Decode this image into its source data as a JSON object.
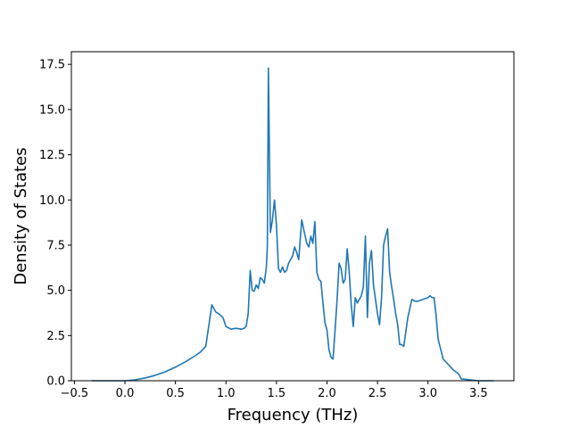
{
  "chart_data": {
    "type": "line",
    "title": "",
    "xlabel": "Frequency (THz)",
    "ylabel": "Density of States",
    "xlim": [
      -0.53,
      3.85
    ],
    "ylim": [
      0.0,
      18.2
    ],
    "xticks": [
      -0.5,
      0.0,
      0.5,
      1.0,
      1.5,
      2.0,
      2.5,
      3.0,
      3.5
    ],
    "xtick_labels": [
      "−0.5",
      "0.0",
      "0.5",
      "1.0",
      "1.5",
      "2.0",
      "2.5",
      "3.0",
      "3.5"
    ],
    "yticks": [
      0.0,
      2.5,
      5.0,
      7.5,
      10.0,
      12.5,
      15.0,
      17.5
    ],
    "ytick_labels": [
      "0.0",
      "2.5",
      "5.0",
      "7.5",
      "10.0",
      "12.5",
      "15.0",
      "17.5"
    ],
    "grid": false,
    "line_color": "#1f77b4",
    "series": [
      {
        "x": [
          -0.33,
          -0.2,
          0.0,
          0.1,
          0.2,
          0.3,
          0.4,
          0.5,
          0.6,
          0.7,
          0.75,
          0.8,
          0.85,
          0.86,
          0.88,
          0.9,
          0.93,
          0.97,
          1.0,
          1.05,
          1.1,
          1.15,
          1.18,
          1.2,
          1.22,
          1.24,
          1.26,
          1.28,
          1.3,
          1.32,
          1.34,
          1.36,
          1.38,
          1.4,
          1.41,
          1.42,
          1.44,
          1.46,
          1.48,
          1.5,
          1.52,
          1.54,
          1.56,
          1.58,
          1.6,
          1.62,
          1.64,
          1.66,
          1.68,
          1.7,
          1.72,
          1.75,
          1.78,
          1.8,
          1.82,
          1.84,
          1.86,
          1.88,
          1.9,
          1.92,
          1.94,
          1.96,
          1.98,
          2.0,
          2.02,
          2.04,
          2.06,
          2.08,
          2.1,
          2.12,
          2.14,
          2.16,
          2.18,
          2.2,
          2.22,
          2.24,
          2.26,
          2.28,
          2.3,
          2.32,
          2.34,
          2.36,
          2.38,
          2.4,
          2.42,
          2.44,
          2.46,
          2.48,
          2.5,
          2.52,
          2.54,
          2.56,
          2.58,
          2.6,
          2.62,
          2.64,
          2.66,
          2.68,
          2.7,
          2.72,
          2.74,
          2.76,
          2.8,
          2.84,
          2.87,
          2.9,
          2.95,
          3.0,
          3.02,
          3.04,
          3.06,
          3.08,
          3.1,
          3.15,
          3.2,
          3.25,
          3.3,
          3.33,
          3.5,
          3.65
        ],
        "y": [
          0.0,
          0.0,
          0.0,
          0.05,
          0.15,
          0.3,
          0.5,
          0.75,
          1.05,
          1.4,
          1.6,
          1.9,
          3.8,
          4.2,
          4.0,
          3.8,
          3.7,
          3.5,
          3.0,
          2.85,
          2.9,
          2.85,
          2.9,
          3.0,
          3.7,
          6.1,
          5.0,
          4.95,
          5.3,
          5.1,
          5.7,
          5.6,
          5.4,
          6.3,
          7.5,
          17.3,
          8.2,
          8.9,
          10.0,
          8.6,
          6.2,
          6.0,
          6.3,
          6.0,
          6.1,
          6.5,
          6.7,
          6.9,
          7.4,
          7.1,
          6.7,
          8.9,
          8.1,
          7.6,
          7.4,
          8.0,
          7.6,
          8.8,
          6.0,
          5.6,
          5.5,
          4.3,
          3.2,
          2.8,
          1.7,
          1.3,
          1.2,
          2.8,
          4.5,
          6.5,
          6.2,
          5.4,
          5.6,
          7.3,
          6.0,
          4.2,
          3.0,
          4.6,
          4.3,
          4.5,
          4.7,
          5.2,
          8.0,
          3.5,
          6.5,
          7.2,
          5.3,
          4.5,
          3.7,
          3.1,
          4.6,
          7.5,
          8.0,
          8.4,
          6.0,
          5.2,
          4.5,
          3.7,
          3.1,
          2.0,
          2.0,
          1.9,
          3.5,
          4.5,
          4.4,
          4.4,
          4.5,
          4.6,
          4.7,
          4.6,
          4.6,
          3.6,
          2.3,
          1.2,
          0.9,
          0.6,
          0.4,
          0.1,
          0.0,
          0.0
        ]
      }
    ]
  }
}
